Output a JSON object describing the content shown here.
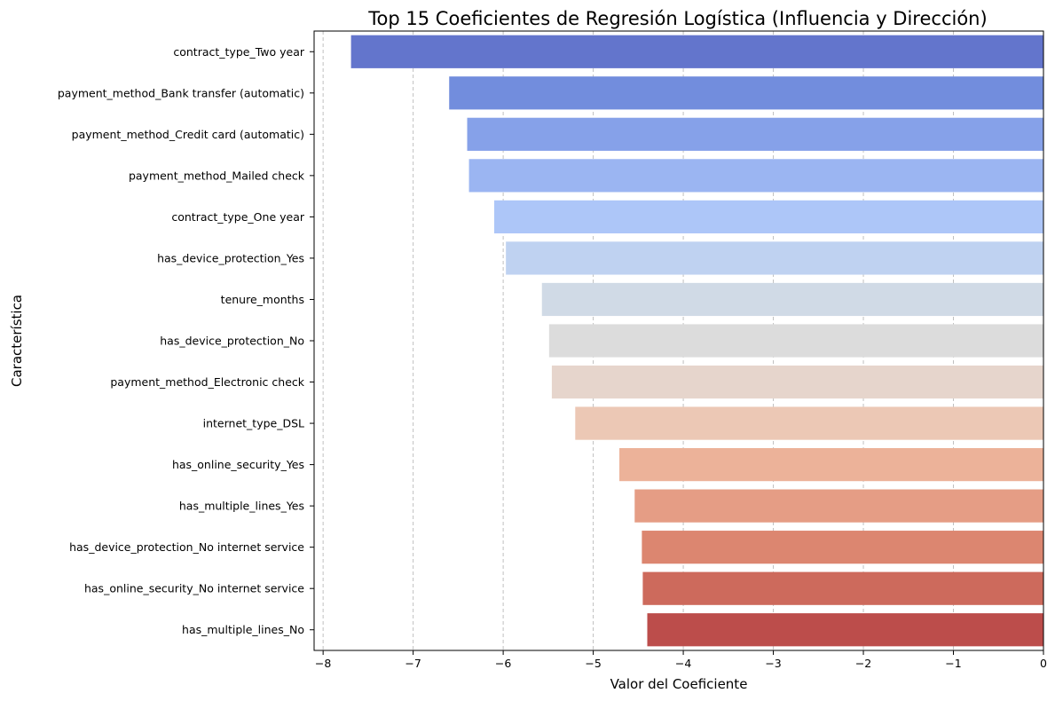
{
  "chart_data": {
    "type": "bar",
    "orientation": "horizontal",
    "title": "Top 15 Coeficientes de Regresión Logística (Influencia y Dirección)",
    "xlabel": "Valor del Coeficiente",
    "ylabel": "Característica",
    "xlim": [
      -8.1,
      0
    ],
    "xticks": [
      -8,
      -7,
      -6,
      -5,
      -4,
      -3,
      -2,
      -1,
      0
    ],
    "xtick_labels": [
      "−8",
      "−7",
      "−6",
      "−5",
      "−4",
      "−3",
      "−2",
      "−1",
      "0"
    ],
    "grid": "x-dashed",
    "categories": [
      "contract_type_Two year",
      "payment_method_Bank transfer (automatic)",
      "payment_method_Credit card (automatic)",
      "payment_method_Mailed check",
      "contract_type_One year",
      "has_device_protection_Yes",
      "tenure_months",
      "has_device_protection_No",
      "payment_method_Electronic check",
      "internet_type_DSL",
      "has_online_security_Yes",
      "has_multiple_lines_Yes",
      "has_device_protection_No internet service",
      "has_online_security_No internet service",
      "has_multiple_lines_No"
    ],
    "values": [
      -7.69,
      -6.6,
      -6.4,
      -6.38,
      -6.1,
      -5.97,
      -5.57,
      -5.49,
      -5.46,
      -5.2,
      -4.71,
      -4.54,
      -4.46,
      -4.45,
      -4.4
    ],
    "colors": [
      "#6375cc",
      "#728ddd",
      "#86a1e9",
      "#9bb5f2",
      "#adc6f8",
      "#bfd2f1",
      "#d0dae6",
      "#dcdcdc",
      "#e6d5cc",
      "#ecc8b5",
      "#ecb299",
      "#e59d85",
      "#dc8670",
      "#cd6a5c",
      "#bc4d4b"
    ]
  }
}
